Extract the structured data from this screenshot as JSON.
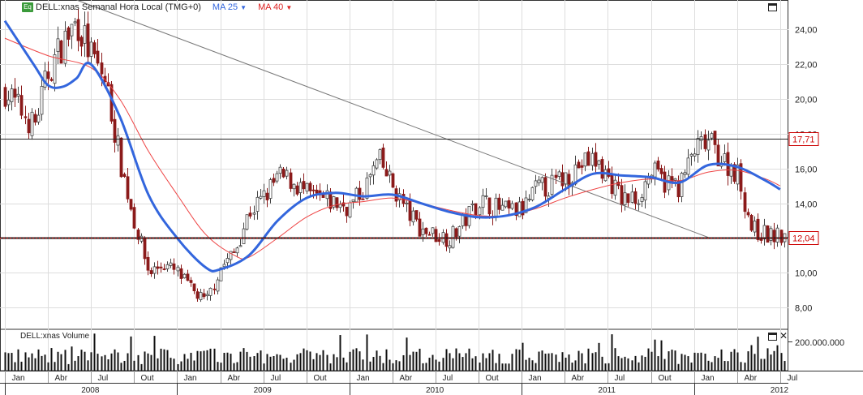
{
  "legend": {
    "badge": "Eq",
    "title": "DELL:xnas Semanal Hora Local (TMG+0)",
    "ma25": "MA 25",
    "ma40": "MA 40"
  },
  "volume_title": "DELL:xnas Volume",
  "colors": {
    "ma25": "#3366dd",
    "ma40": "#ee4444",
    "candle_down": "#8b1a1a",
    "candle_up": "#444444",
    "hline_red": "#cc0000",
    "grid": "#dddddd",
    "badge": "#3a9a3a"
  },
  "hlines": [
    {
      "value": 17.71,
      "label": "17,71"
    },
    {
      "value": 12.04,
      "label": "12,04"
    }
  ],
  "chart_data": {
    "type": "candlestick",
    "y_axis": {
      "ticks": [
        "8,00",
        "10,00",
        "12,00",
        "14,00",
        "16,00",
        "18,00",
        "20,00",
        "22,00",
        "24,00"
      ],
      "range": [
        6.75,
        25.7
      ]
    },
    "volume_axis": {
      "ticks": [
        "200.000.000"
      ]
    },
    "x_axis": {
      "months": [
        "Jan",
        "Abr",
        "Jul",
        "Out",
        "Jan",
        "Abr",
        "Jul",
        "Out",
        "Jan",
        "Abr",
        "Jul",
        "Out",
        "Jan",
        "Abr",
        "Jul",
        "Out",
        "Jan",
        "Abr",
        "Jul"
      ],
      "years": [
        "2008",
        "2009",
        "2010",
        "2011",
        "2012"
      ],
      "range": [
        "2008-01",
        "2012-07"
      ]
    },
    "price_path": [
      [
        "2008-01",
        20.5
      ],
      [
        "2008-03",
        18.4
      ],
      [
        "2008-04",
        21.5
      ],
      [
        "2008-05",
        23.2
      ],
      [
        "2008-06",
        24.5
      ],
      [
        "2008-07",
        22.5
      ],
      [
        "2008-08",
        21.0
      ],
      [
        "2008-09",
        16.5
      ],
      [
        "2008-10",
        13.0
      ],
      [
        "2008-11",
        10.0
      ],
      [
        "2008-12",
        10.5
      ],
      [
        "2009-01",
        10.0
      ],
      [
        "2009-02",
        9.0
      ],
      [
        "2009-03",
        8.3
      ],
      [
        "2009-04",
        10.3
      ],
      [
        "2009-05",
        11.2
      ],
      [
        "2009-06",
        13.5
      ],
      [
        "2009-07",
        14.3
      ],
      [
        "2009-08",
        15.5
      ],
      [
        "2009-09",
        15.3
      ],
      [
        "2009-10",
        14.5
      ],
      [
        "2009-11",
        14.2
      ],
      [
        "2009-12",
        14.0
      ],
      [
        "2010-01",
        13.8
      ],
      [
        "2010-02",
        14.8
      ],
      [
        "2010-03",
        16.5
      ],
      [
        "2010-04",
        15.0
      ],
      [
        "2010-05",
        13.5
      ],
      [
        "2010-06",
        12.5
      ],
      [
        "2010-07",
        12.2
      ],
      [
        "2010-08",
        12.0
      ],
      [
        "2010-09",
        13.0
      ],
      [
        "2010-10",
        14.2
      ],
      [
        "2010-11",
        13.8
      ],
      [
        "2010-12",
        13.5
      ],
      [
        "2011-01",
        13.6
      ],
      [
        "2011-02",
        14.8
      ],
      [
        "2011-03",
        15.0
      ],
      [
        "2011-04",
        15.5
      ],
      [
        "2011-05",
        16.2
      ],
      [
        "2011-06",
        16.5
      ],
      [
        "2011-07",
        15.5
      ],
      [
        "2011-08",
        14.2
      ],
      [
        "2011-09",
        14.3
      ],
      [
        "2011-10",
        15.8
      ],
      [
        "2011-11",
        15.2
      ],
      [
        "2011-12",
        15.0
      ],
      [
        "2012-01",
        17.0
      ],
      [
        "2012-02",
        17.5
      ],
      [
        "2012-03",
        16.5
      ],
      [
        "2012-04",
        15.8
      ],
      [
        "2012-05",
        12.5
      ],
      [
        "2012-06",
        12.2
      ],
      [
        "2012-07",
        12.04
      ]
    ],
    "ma25_path": [
      [
        "2008-01",
        24.5
      ],
      [
        "2008-03",
        22.0
      ],
      [
        "2008-04",
        20.8
      ],
      [
        "2008-05",
        20.7
      ],
      [
        "2008-06",
        21.2
      ],
      [
        "2008-07",
        22.0
      ],
      [
        "2008-09",
        19.0
      ],
      [
        "2008-11",
        14.5
      ],
      [
        "2009-01",
        12.0
      ],
      [
        "2009-03",
        10.3
      ],
      [
        "2009-04",
        10.2
      ],
      [
        "2009-06",
        11.0
      ],
      [
        "2009-08",
        13.0
      ],
      [
        "2009-10",
        14.3
      ],
      [
        "2009-12",
        14.6
      ],
      [
        "2010-02",
        14.4
      ],
      [
        "2010-04",
        14.5
      ],
      [
        "2010-06",
        14.0
      ],
      [
        "2010-08",
        13.5
      ],
      [
        "2010-10",
        13.2
      ],
      [
        "2010-12",
        13.3
      ],
      [
        "2011-02",
        13.8
      ],
      [
        "2011-04",
        14.8
      ],
      [
        "2011-06",
        15.7
      ],
      [
        "2011-08",
        15.6
      ],
      [
        "2011-10",
        15.5
      ],
      [
        "2011-12",
        15.2
      ],
      [
        "2012-02",
        16.2
      ],
      [
        "2012-04",
        16.1
      ],
      [
        "2012-06",
        15.3
      ],
      [
        "2012-07",
        14.8
      ]
    ],
    "ma40_path": [
      [
        "2008-01",
        23.5
      ],
      [
        "2008-04",
        22.5
      ],
      [
        "2008-07",
        21.8
      ],
      [
        "2008-09",
        20.0
      ],
      [
        "2008-11",
        17.0
      ],
      [
        "2009-01",
        14.5
      ],
      [
        "2009-03",
        12.2
      ],
      [
        "2009-05",
        11.0
      ],
      [
        "2009-06",
        10.9
      ],
      [
        "2009-08",
        12.0
      ],
      [
        "2009-10",
        13.2
      ],
      [
        "2009-12",
        13.9
      ],
      [
        "2010-02",
        14.1
      ],
      [
        "2010-04",
        14.3
      ],
      [
        "2010-06",
        14.0
      ],
      [
        "2010-08",
        13.6
      ],
      [
        "2010-10",
        13.3
      ],
      [
        "2010-12",
        13.3
      ],
      [
        "2011-02",
        13.7
      ],
      [
        "2011-04",
        14.3
      ],
      [
        "2011-06",
        14.8
      ],
      [
        "2011-08",
        15.2
      ],
      [
        "2011-10",
        15.4
      ],
      [
        "2011-12",
        15.3
      ],
      [
        "2012-02",
        15.8
      ],
      [
        "2012-04",
        15.9
      ],
      [
        "2012-06",
        15.4
      ],
      [
        "2012-07",
        15.0
      ]
    ],
    "trendline": [
      [
        "2008-06",
        25.7
      ],
      [
        "2012-02",
        12.04
      ]
    ]
  }
}
